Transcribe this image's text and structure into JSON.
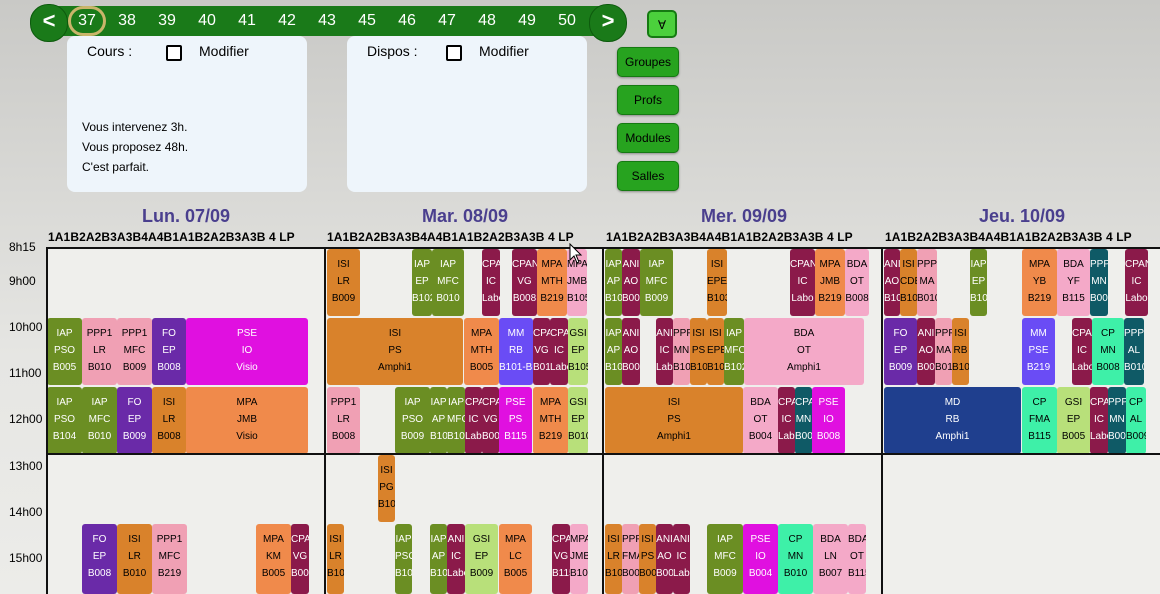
{
  "weeks": {
    "prev_label": "<",
    "next_label": ">",
    "items": [
      "37",
      "38",
      "39",
      "40",
      "41",
      "42",
      "43",
      "45",
      "46",
      "47",
      "48",
      "49",
      "50"
    ],
    "selected": "37"
  },
  "toggle_button": "∀",
  "side_buttons": [
    "Groupes",
    "Profs",
    "Modules",
    "Salles"
  ],
  "cours_panel": {
    "label": "Cours :",
    "modify_label": "Modifier"
  },
  "dispos_panel": {
    "label": "Dispos :",
    "modify_label": "Modifier"
  },
  "messages": [
    "Vous intervenez 3h.",
    "Vous proposez 48h.",
    "C'est parfait."
  ],
  "days": [
    {
      "label": "Lun. 07/09",
      "groups": "1A1B2A2B3A3B4A4B1A1B2A2B3A3B 4 LP"
    },
    {
      "label": "Mar. 08/09",
      "groups": "1A1B2A2B3A3B4A4B1A1B2A2B3A3B 4 LP"
    },
    {
      "label": "Mer. 09/09",
      "groups": "1A1B2A2B3A3B4A4B1A1B2A2B3A3B 4 LP"
    },
    {
      "label": "Jeu. 10/09",
      "groups": "1A1B2A2B3A3B4A4B1A1B2A2B3A3B 4 LP"
    }
  ],
  "hours": [
    "8h15",
    "9h00",
    "10h00",
    "11h00",
    "12h00",
    "13h00",
    "14h00",
    "15h00"
  ],
  "colors": {
    "olive": "#6b8e23",
    "pink": "#f0a0b4",
    "purple": "#6a2aa8",
    "orange": "#d9822b",
    "magenta": "#e010e0",
    "salmon": "#f08a4b",
    "maroon": "#8b1a4a",
    "blue": "#6a4cf5",
    "lightgreen": "#b8e07a",
    "navy": "#1f3f8e",
    "teal": "#0f5a66",
    "mint": "#3ef0a8",
    "lpink": "#f4a9c8"
  },
  "courses": [
    {
      "lines": [
        "IAP",
        "PSO",
        "B005"
      ],
      "color": "olive"
    },
    {
      "lines": [
        "PPP1",
        "LR",
        "B010"
      ],
      "color": "pink"
    },
    {
      "lines": [
        "PPP1",
        "MFC",
        "B009"
      ],
      "color": "pink"
    },
    {
      "lines": [
        "FO",
        "EP",
        "B008"
      ],
      "color": "purple"
    },
    {
      "lines": [
        "PSE",
        "IO",
        "Visio"
      ],
      "color": "magenta"
    },
    {
      "lines": [
        "IAP",
        "PSO",
        "B104"
      ],
      "color": "olive"
    },
    {
      "lines": [
        "IAP",
        "MFC",
        "B010"
      ],
      "color": "olive"
    },
    {
      "lines": [
        "FO",
        "EP",
        "B009"
      ],
      "color": "purple"
    },
    {
      "lines": [
        "ISI",
        "LR",
        "B008"
      ],
      "color": "orange"
    },
    {
      "lines": [
        "MPA",
        "JMB",
        "Visio"
      ],
      "color": "salmon"
    },
    {
      "lines": [
        "ISI",
        "LR",
        "B009"
      ],
      "color": "orange"
    },
    {
      "lines": [
        "IAP",
        "EP",
        "B102"
      ],
      "color": "olive"
    },
    {
      "lines": [
        "IAP",
        "MFC",
        "B010"
      ],
      "color": "olive"
    },
    {
      "lines": [
        "CPAN",
        "IC",
        "Labo"
      ],
      "color": "maroon"
    },
    {
      "lines": [
        "CPAN",
        "VG",
        "B008"
      ],
      "color": "maroon"
    },
    {
      "lines": [
        "MPA",
        "MTH",
        "B219"
      ],
      "color": "salmon"
    },
    {
      "lines": [
        "MPA",
        "JMB",
        "B105"
      ],
      "color": "lpink"
    },
    {
      "lines": [
        "ISI",
        "PS",
        "Amphi1"
      ],
      "color": "orange"
    },
    {
      "lines": [
        "MPA",
        "MTH",
        "B005"
      ],
      "color": "salmon"
    },
    {
      "lines": [
        "MM",
        "RB",
        "B101-B102"
      ],
      "color": "blue"
    },
    {
      "lines": [
        "CPAN",
        "VG",
        "B010"
      ],
      "color": "maroon"
    },
    {
      "lines": [
        "CPAN",
        "IC",
        "Labo"
      ],
      "color": "maroon"
    },
    {
      "lines": [
        "GSI",
        "EP",
        "B105"
      ],
      "color": "lightgreen"
    },
    {
      "lines": [
        "PPP1",
        "LR",
        "B008"
      ],
      "color": "pink"
    },
    {
      "lines": [
        "IAP",
        "PSO",
        "B009"
      ],
      "color": "olive"
    },
    {
      "lines": [
        "IAP",
        "AP",
        "B101"
      ],
      "color": "olive"
    },
    {
      "lines": [
        "IAP",
        "MFC",
        "B102"
      ],
      "color": "olive"
    },
    {
      "lines": [
        "CPAN",
        "IC",
        "Labo"
      ],
      "color": "maroon"
    },
    {
      "lines": [
        "CPAN",
        "VG",
        "B005"
      ],
      "color": "maroon"
    },
    {
      "lines": [
        "PSE",
        "PS",
        "B115"
      ],
      "color": "magenta"
    },
    {
      "lines": [
        "MPA",
        "MTH",
        "B219"
      ],
      "color": "salmon"
    },
    {
      "lines": [
        "GSI",
        "EP",
        "B010"
      ],
      "color": "lightgreen"
    },
    {
      "lines": [
        "IAP",
        "AP",
        "B108"
      ],
      "color": "olive"
    },
    {
      "lines": [
        "ANI",
        "AO",
        "B005"
      ],
      "color": "maroon"
    },
    {
      "lines": [
        "IAP",
        "MFC",
        "B009"
      ],
      "color": "olive"
    },
    {
      "lines": [
        "ISI",
        "EPE",
        "B103"
      ],
      "color": "orange"
    },
    {
      "lines": [
        "CPAN",
        "IC",
        "Labo"
      ],
      "color": "maroon"
    },
    {
      "lines": [
        "MPA",
        "JMB",
        "B219"
      ],
      "color": "salmon"
    },
    {
      "lines": [
        "BDA",
        "OT",
        "B008"
      ],
      "color": "lpink"
    },
    {
      "lines": [
        "IAP",
        "AP",
        "B108"
      ],
      "color": "olive"
    },
    {
      "lines": [
        "ANI",
        "AO",
        "B005"
      ],
      "color": "maroon"
    },
    {
      "lines": [
        "ANI",
        "IC",
        "Labo"
      ],
      "color": "maroon"
    },
    {
      "lines": [
        "PPP1",
        "MN",
        "B101"
      ],
      "color": "pink"
    },
    {
      "lines": [
        "ISI",
        "PS",
        "B102"
      ],
      "color": "orange"
    },
    {
      "lines": [
        "ISI",
        "EPE",
        "B103"
      ],
      "color": "orange"
    },
    {
      "lines": [
        "IAP",
        "MFC",
        "B102"
      ],
      "color": "olive"
    },
    {
      "lines": [
        "BDA",
        "OT",
        "Amphi1"
      ],
      "color": "lpink"
    },
    {
      "lines": [
        "ISI",
        "PS",
        "Amphi1"
      ],
      "color": "orange"
    },
    {
      "lines": [
        "BDA",
        "OT",
        "B004"
      ],
      "color": "lpink"
    },
    {
      "lines": [
        "CPAN",
        "IC",
        "Labo"
      ],
      "color": "maroon"
    },
    {
      "lines": [
        "CPAN",
        "MN",
        "B008"
      ],
      "color": "teal"
    },
    {
      "lines": [
        "PSE",
        "IO",
        "B008"
      ],
      "color": "magenta"
    },
    {
      "lines": [
        "ANI",
        "AO",
        "B101"
      ],
      "color": "maroon"
    },
    {
      "lines": [
        "ISI",
        "CDE",
        "B101"
      ],
      "color": "orange"
    },
    {
      "lines": [
        "PPP1",
        "MA",
        "B010"
      ],
      "color": "pink"
    },
    {
      "lines": [
        "IAP",
        "EP",
        "B106"
      ],
      "color": "olive"
    },
    {
      "lines": [
        "MPA",
        "YB",
        "B219"
      ],
      "color": "salmon"
    },
    {
      "lines": [
        "BDA",
        "YF",
        "B115"
      ],
      "color": "lpink"
    },
    {
      "lines": [
        "PPP3",
        "MN",
        "B008"
      ],
      "color": "teal"
    },
    {
      "lines": [
        "CPAN",
        "IC",
        "Labo"
      ],
      "color": "maroon"
    },
    {
      "lines": [
        "FO",
        "EP",
        "B009"
      ],
      "color": "purple"
    },
    {
      "lines": [
        "ANI",
        "AO",
        "B005"
      ],
      "color": "maroon"
    },
    {
      "lines": [
        "PPP1",
        "MA",
        "B011"
      ],
      "color": "pink"
    },
    {
      "lines": [
        "ISI",
        "RB",
        "B101"
      ],
      "color": "orange"
    },
    {
      "lines": [
        "MM",
        "PSE",
        "B219"
      ],
      "color": "blue"
    },
    {
      "lines": [
        "CPAN",
        "IC",
        "Labo"
      ],
      "color": "maroon"
    },
    {
      "lines": [
        "CP",
        "MN",
        "B008"
      ],
      "color": "mint"
    },
    {
      "lines": [
        "PPP3",
        "AL",
        "B010"
      ],
      "color": "teal"
    },
    {
      "lines": [
        "MD",
        "RB",
        "Amphi1"
      ],
      "color": "navy"
    },
    {
      "lines": [
        "CP",
        "FMA",
        "B115"
      ],
      "color": "mint"
    },
    {
      "lines": [
        "GSI",
        "EP",
        "B005"
      ],
      "color": "lightgreen"
    },
    {
      "lines": [
        "CPAN",
        "IC",
        "Labo"
      ],
      "color": "maroon"
    },
    {
      "lines": [
        "PPP3",
        "MN",
        "B008"
      ],
      "color": "teal"
    },
    {
      "lines": [
        "CP",
        "AL",
        "B009"
      ],
      "color": "mint"
    },
    {
      "lines": [
        "ISI",
        "PG",
        "B101"
      ],
      "color": "orange"
    },
    {
      "lines": [
        "FO",
        "EP",
        "B008"
      ],
      "color": "purple"
    },
    {
      "lines": [
        "ISI",
        "LR",
        "B010"
      ],
      "color": "orange"
    },
    {
      "lines": [
        "PPP1",
        "MFC",
        "B219"
      ],
      "color": "pink"
    },
    {
      "lines": [
        "MPA",
        "KM",
        "B005"
      ],
      "color": "salmon"
    },
    {
      "lines": [
        "CPAN",
        "VG",
        "B009"
      ],
      "color": "maroon"
    },
    {
      "lines": [
        "ISI",
        "LR",
        "B106"
      ],
      "color": "orange"
    },
    {
      "lines": [
        "IAP",
        "PSO",
        "B103"
      ],
      "color": "olive"
    },
    {
      "lines": [
        "IAP",
        "AP",
        "B101"
      ],
      "color": "olive"
    },
    {
      "lines": [
        "ANI",
        "IC",
        "Labo"
      ],
      "color": "maroon"
    },
    {
      "lines": [
        "GSI",
        "EP",
        "B009"
      ],
      "color": "lightgreen"
    },
    {
      "lines": [
        "MPA",
        "LC",
        "B005"
      ],
      "color": "salmon"
    },
    {
      "lines": [
        "CPAN",
        "VG",
        "B115"
      ],
      "color": "maroon"
    },
    {
      "lines": [
        "MPA",
        "JMB",
        "B105"
      ],
      "color": "lpink"
    },
    {
      "lines": [
        "ISI",
        "LR",
        "B106"
      ],
      "color": "orange"
    },
    {
      "lines": [
        "PPP1",
        "FMA",
        "B008"
      ],
      "color": "pink"
    },
    {
      "lines": [
        "ISI",
        "PS",
        "B005"
      ],
      "color": "orange"
    },
    {
      "lines": [
        "ANI",
        "AO",
        "B005"
      ],
      "color": "maroon"
    },
    {
      "lines": [
        "ANI",
        "IC",
        "Labo"
      ],
      "color": "maroon"
    },
    {
      "lines": [
        "IAP",
        "MFC",
        "B009"
      ],
      "color": "olive"
    },
    {
      "lines": [
        "PSE",
        "IO",
        "B004"
      ],
      "color": "magenta"
    },
    {
      "lines": [
        "CP",
        "MN",
        "B010"
      ],
      "color": "mint"
    },
    {
      "lines": [
        "BDA",
        "LN",
        "B007"
      ],
      "color": "lpink"
    },
    {
      "lines": [
        "BDA",
        "OT",
        "B115"
      ],
      "color": "lpink"
    }
  ]
}
